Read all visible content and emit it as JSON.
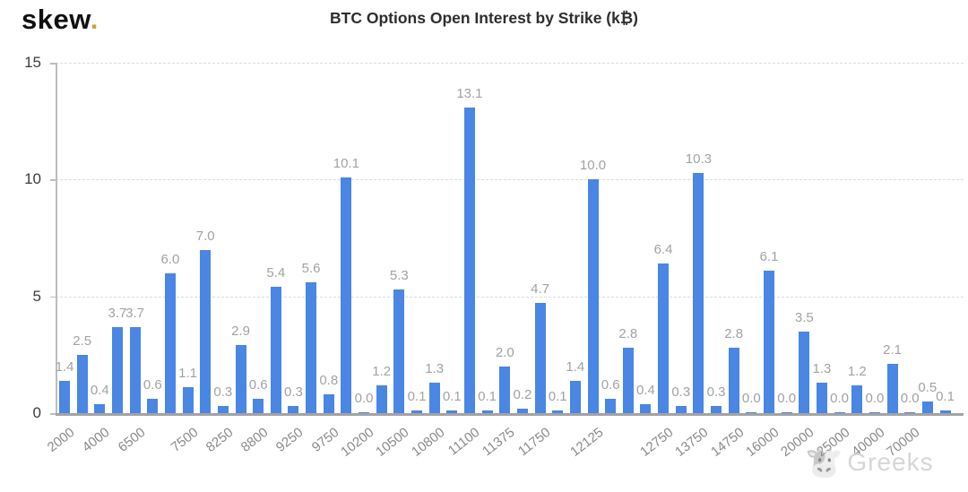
{
  "logo": {
    "text": "skew",
    "dot": "."
  },
  "title": "BTC Options Open Interest by Strike (k₿)",
  "watermark": {
    "icon": "cow-face",
    "text": "Greeks"
  },
  "colors": {
    "bar": "#4a86e3",
    "value_label": "#a2a2a2",
    "y_label": "#3c3c3c",
    "x_label": "#8a8a8a",
    "grid": "#dcdcdc",
    "baseline": "#a3a3a3",
    "logo_dot": "#c9a43c",
    "title": "#2e2e2e",
    "watermark": "#d2d2d2"
  },
  "chart_data": {
    "type": "bar",
    "title": "BTC Options Open Interest by Strike (k₿)",
    "xlabel": "",
    "ylabel": "",
    "ylim": [
      0,
      15
    ],
    "yticks": [
      0,
      5,
      10,
      15
    ],
    "grid": "horizontal-dashed",
    "legend": "none",
    "values": [
      1.4,
      2.5,
      0.4,
      3.7,
      3.7,
      0.6,
      6.0,
      1.1,
      7.0,
      0.3,
      2.9,
      0.6,
      5.4,
      0.3,
      5.6,
      0.8,
      10.1,
      0.0,
      1.2,
      5.3,
      0.1,
      1.3,
      0.1,
      13.1,
      0.1,
      2.0,
      0.2,
      4.7,
      0.1,
      1.4,
      10.0,
      0.6,
      2.8,
      0.4,
      6.4,
      0.3,
      10.3,
      0.3,
      2.8,
      0.0,
      6.1,
      0.0,
      3.5,
      1.3,
      0.0,
      1.2,
      0.0,
      2.1,
      0.0,
      0.5,
      0.1
    ],
    "value_labels": [
      "1.4",
      "2.5",
      "0.4",
      "3.7",
      "3.7",
      "0.6",
      "6.0",
      "1.1",
      "7.0",
      "0.3",
      "2.9",
      "0.6",
      "5.4",
      "0.3",
      "5.6",
      "0.8",
      "10.1",
      "0.0",
      "1.2",
      "5.3",
      "0.1",
      "1.3",
      "0.1",
      "13.1",
      "0.1",
      "2.0",
      "0.2",
      "4.7",
      "0.1",
      "1.4",
      "10.0",
      "0.6",
      "2.8",
      "0.4",
      "6.4",
      "0.3",
      "10.3",
      "0.3",
      "2.8",
      "0.0",
      "6.1",
      "0.0",
      "3.5",
      "1.3",
      "0.0",
      "1.2",
      "0.0",
      "2.1",
      "0.0",
      "0.5",
      "0.1"
    ],
    "x_tick_labels": [
      "2000",
      "4000",
      "6500",
      "7500",
      "8250",
      "8800",
      "9250",
      "9750",
      "10200",
      "10500",
      "10800",
      "11100",
      "11375",
      "11750",
      "12125",
      "12750",
      "13750",
      "14750",
      "16000",
      "20000",
      "25000",
      "40000",
      "70000"
    ],
    "x_tick_bar_indices": [
      0,
      2,
      4,
      7,
      9,
      11,
      13,
      15,
      17,
      19,
      21,
      23,
      25,
      27,
      30,
      34,
      36,
      38,
      40,
      42,
      44,
      46,
      48
    ]
  }
}
